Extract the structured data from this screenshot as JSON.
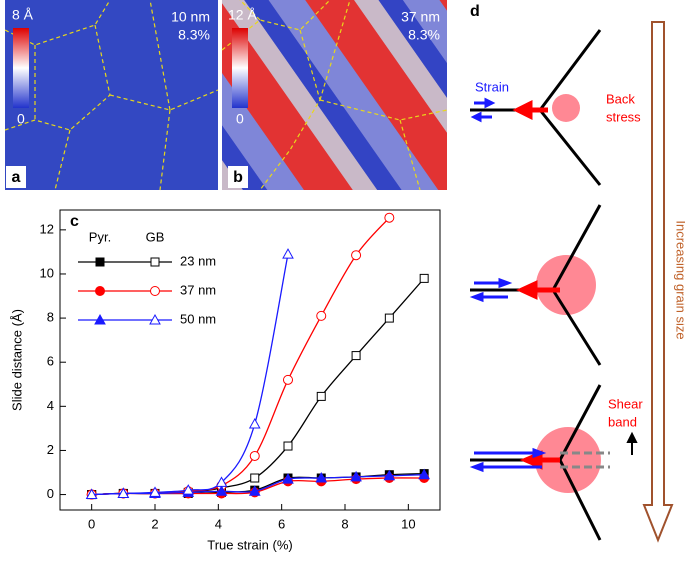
{
  "panels": {
    "a": {
      "label": "a",
      "scale_max": "8 Å",
      "scale_min": "0",
      "size": "10 nm",
      "strain": "8.3%"
    },
    "b": {
      "label": "b",
      "scale_max": "12 Å",
      "scale_min": "0",
      "size": "37 nm",
      "strain": "8.3%"
    },
    "d": {
      "label": "d",
      "strain": "Strain",
      "back_stress": [
        "Back",
        "stress"
      ],
      "shear_band": [
        "Shear",
        "band"
      ],
      "grain_size": "Increasing grain size"
    }
  },
  "chart_data": {
    "type": "line",
    "panel_label": "c",
    "xlabel": "True strain (%)",
    "ylabel": "Slide distance (Å)",
    "legend_columns": [
      "Pyr.",
      "GB"
    ],
    "x": [
      0,
      1,
      2,
      3.05,
      4.1,
      5.15,
      6.2,
      7.25,
      8.35,
      9.4,
      10.5
    ],
    "series": [
      {
        "name": "23 nm",
        "color": "#000000",
        "marker": "square",
        "pyr": [
          0,
          0.05,
          0.05,
          0.05,
          0.1,
          0.2,
          0.75,
          0.75,
          0.8,
          0.9,
          0.95
        ],
        "gb": [
          0,
          0.05,
          0.05,
          0.1,
          0.3,
          0.75,
          2.2,
          4.45,
          6.3,
          8.0,
          9.8
        ]
      },
      {
        "name": "37 nm",
        "color": "#ff0000",
        "marker": "circle",
        "pyr": [
          0,
          0.05,
          0.05,
          0.05,
          0.05,
          0.1,
          0.6,
          0.6,
          0.7,
          0.75,
          0.75
        ],
        "gb": [
          0,
          0.05,
          0.05,
          0.15,
          0.4,
          1.75,
          5.2,
          8.1,
          10.85,
          12.55,
          null
        ]
      },
      {
        "name": "50 nm",
        "color": "#1a1aff",
        "marker": "triangle",
        "pyr": [
          0,
          0.05,
          0.05,
          0.1,
          0.15,
          0.15,
          0.7,
          0.75,
          0.8,
          0.85,
          0.9
        ],
        "gb": [
          0,
          0.05,
          0.1,
          0.2,
          0.55,
          3.2,
          10.9,
          null,
          null,
          null,
          null
        ]
      }
    ],
    "xlim": [
      -1,
      11
    ],
    "ylim": [
      -0.7,
      12.9
    ],
    "xticks": [
      0,
      2,
      4,
      6,
      8,
      10
    ],
    "yticks": [
      0,
      2,
      4,
      6,
      8,
      10,
      12
    ]
  }
}
